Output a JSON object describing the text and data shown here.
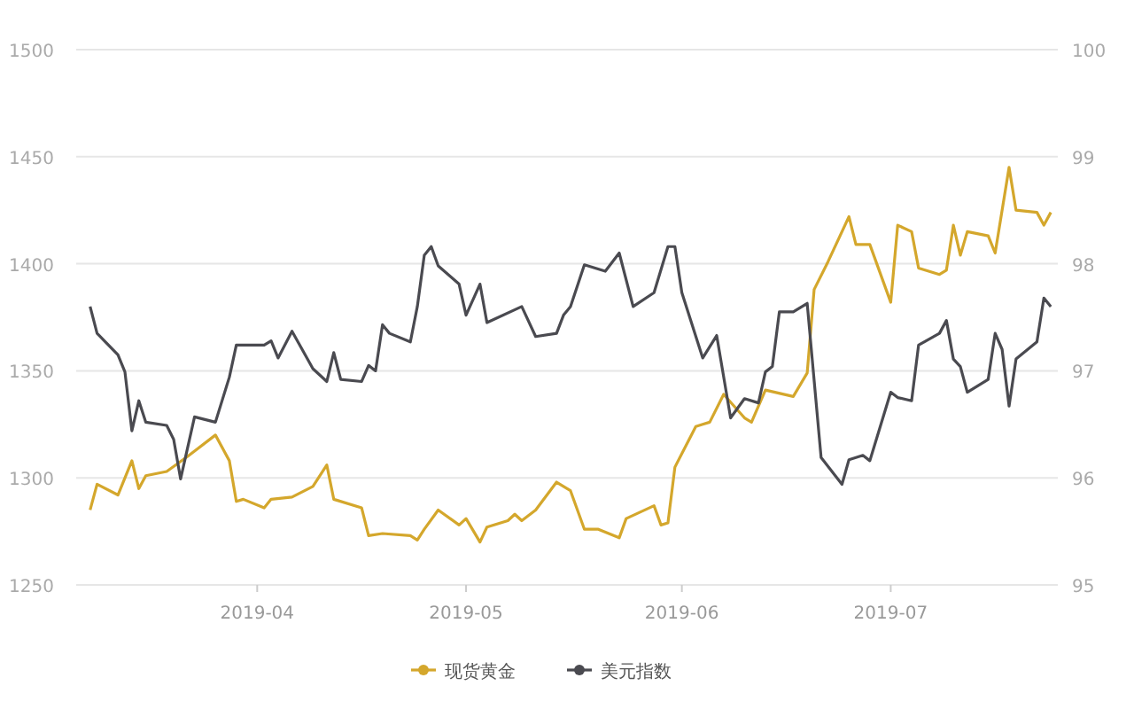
{
  "chart_data": {
    "type": "line",
    "xlim": [
      "2019-03-06",
      "2019-07-25"
    ],
    "xticks": [
      "2019-04",
      "2019-05",
      "2019-06",
      "2019-07"
    ],
    "ylim": [
      1250,
      1500
    ],
    "yticks": [
      1250,
      1300,
      1350,
      1400,
      1450,
      1500
    ],
    "y2lim": [
      95,
      100
    ],
    "y2ticks": [
      95,
      96,
      97,
      98,
      99,
      100
    ],
    "grid": "y",
    "legend": "bottom",
    "series": [
      {
        "name": "现货黄金",
        "color": "#d4a72c",
        "x": [
          "2019-03-08",
          "2019-03-09",
          "2019-03-12",
          "2019-03-14",
          "2019-03-15",
          "2019-03-16",
          "2019-03-19",
          "2019-03-22",
          "2019-03-26",
          "2019-03-28",
          "2019-03-29",
          "2019-03-30",
          "2019-04-02",
          "2019-04-03",
          "2019-04-06",
          "2019-04-09",
          "2019-04-11",
          "2019-04-12",
          "2019-04-16",
          "2019-04-17",
          "2019-04-19",
          "2019-04-23",
          "2019-04-24",
          "2019-04-25",
          "2019-04-27",
          "2019-04-30",
          "2019-05-01",
          "2019-05-03",
          "2019-05-04",
          "2019-05-07",
          "2019-05-08",
          "2019-05-09",
          "2019-05-11",
          "2019-05-14",
          "2019-05-16",
          "2019-05-18",
          "2019-05-20",
          "2019-05-23",
          "2019-05-24",
          "2019-05-28",
          "2019-05-29",
          "2019-05-30",
          "2019-05-31",
          "2019-06-03",
          "2019-06-04",
          "2019-06-05",
          "2019-06-07",
          "2019-06-10",
          "2019-06-11",
          "2019-06-13",
          "2019-06-17",
          "2019-06-19",
          "2019-06-20",
          "2019-06-22",
          "2019-06-25",
          "2019-06-26",
          "2019-06-28",
          "2019-07-01",
          "2019-07-02",
          "2019-07-04",
          "2019-07-05",
          "2019-07-08",
          "2019-07-09",
          "2019-07-10",
          "2019-07-11",
          "2019-07-12",
          "2019-07-15",
          "2019-07-16",
          "2019-07-18",
          "2019-07-19",
          "2019-07-22",
          "2019-07-23",
          "2019-07-24"
        ],
        "values": [
          1285,
          1297,
          1292,
          1308,
          1295,
          1301,
          1303,
          1310,
          1320,
          1308,
          1289,
          1290,
          1286,
          1290,
          1291,
          1296,
          1306,
          1290,
          1286,
          1273,
          1274,
          1273,
          1271,
          1276,
          1285,
          1278,
          1281,
          1270,
          1277,
          1280,
          1283,
          1280,
          1285,
          1298,
          1294,
          1276,
          1276,
          1272,
          1281,
          1287,
          1278,
          1279,
          1305,
          1324,
          1325,
          1326,
          1339,
          1328,
          1326,
          1341,
          1338,
          1349,
          1388,
          1401,
          1422,
          1409,
          1409,
          1382,
          1418,
          1415,
          1398,
          1395,
          1397,
          1418,
          1404,
          1415,
          1413,
          1405,
          1445,
          1425,
          1424,
          1418,
          1424
        ]
      },
      {
        "name": "美元指数",
        "color": "#4a4a50",
        "axis": "y2",
        "x": [
          "2019-03-08",
          "2019-03-09",
          "2019-03-12",
          "2019-03-13",
          "2019-03-14",
          "2019-03-15",
          "2019-03-16",
          "2019-03-19",
          "2019-03-20",
          "2019-03-21",
          "2019-03-23",
          "2019-03-26",
          "2019-03-28",
          "2019-03-29",
          "2019-04-02",
          "2019-04-03",
          "2019-04-04",
          "2019-04-06",
          "2019-04-09",
          "2019-04-11",
          "2019-04-12",
          "2019-04-13",
          "2019-04-16",
          "2019-04-17",
          "2019-04-18",
          "2019-04-19",
          "2019-04-20",
          "2019-04-23",
          "2019-04-24",
          "2019-04-25",
          "2019-04-26",
          "2019-04-27",
          "2019-04-30",
          "2019-05-01",
          "2019-05-03",
          "2019-05-04",
          "2019-05-09",
          "2019-05-11",
          "2019-05-14",
          "2019-05-15",
          "2019-05-16",
          "2019-05-18",
          "2019-05-21",
          "2019-05-23",
          "2019-05-25",
          "2019-05-28",
          "2019-05-30",
          "2019-05-31",
          "2019-06-01",
          "2019-06-04",
          "2019-06-06",
          "2019-06-08",
          "2019-06-10",
          "2019-06-12",
          "2019-06-13",
          "2019-06-14",
          "2019-06-15",
          "2019-06-17",
          "2019-06-19",
          "2019-06-21",
          "2019-06-24",
          "2019-06-25",
          "2019-06-27",
          "2019-06-28",
          "2019-07-01",
          "2019-07-02",
          "2019-07-04",
          "2019-07-05",
          "2019-07-08",
          "2019-07-09",
          "2019-07-10",
          "2019-07-11",
          "2019-07-12",
          "2019-07-15",
          "2019-07-16",
          "2019-07-17",
          "2019-07-18",
          "2019-07-19",
          "2019-07-22",
          "2019-07-23",
          "2019-07-24"
        ],
        "values": [
          97.6,
          97.35,
          97.15,
          96.99,
          96.44,
          96.72,
          96.52,
          96.49,
          96.36,
          95.99,
          96.57,
          96.52,
          96.94,
          97.24,
          97.24,
          97.28,
          97.12,
          97.37,
          97.02,
          96.9,
          97.17,
          96.92,
          96.9,
          97.05,
          97.0,
          97.43,
          97.35,
          97.27,
          97.6,
          98.08,
          98.16,
          97.98,
          97.81,
          97.52,
          97.81,
          97.45,
          97.6,
          97.32,
          97.35,
          97.52,
          97.6,
          97.99,
          97.93,
          98.1,
          97.6,
          97.73,
          98.16,
          98.16,
          97.73,
          97.12,
          97.33,
          96.56,
          96.74,
          96.7,
          96.99,
          97.04,
          97.55,
          97.55,
          97.63,
          96.19,
          95.94,
          96.17,
          96.21,
          96.16,
          96.8,
          96.75,
          96.72,
          97.24,
          97.35,
          97.47,
          97.11,
          97.04,
          96.8,
          96.92,
          97.35,
          97.2,
          96.67,
          97.11,
          97.27,
          97.68,
          97.6
        ]
      }
    ]
  }
}
